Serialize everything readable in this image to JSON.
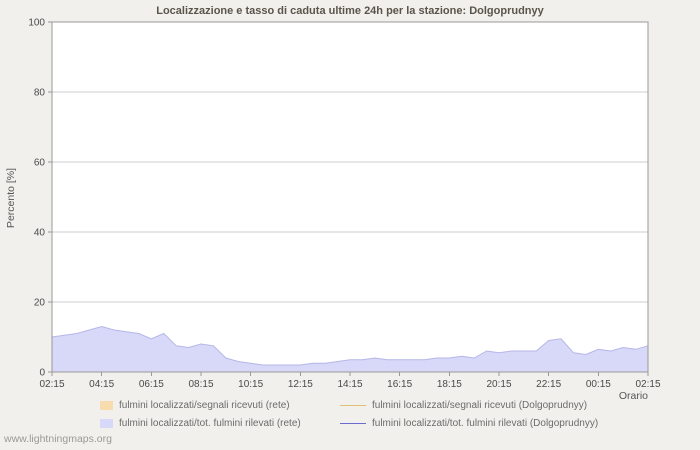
{
  "page": {
    "watermark": "www.lightningmaps.org"
  },
  "colors": {
    "page_bg": "#f1f0ec",
    "plot_bg": "#ffffff",
    "plot_border": "#999999",
    "gridline": "#cccccc",
    "area_rete_fill": "#d8d8f8",
    "area_rete_edge": "#b6b6e8",
    "area_segnali_fill": "#f9dcae",
    "line_segnali_station": "#e4c077",
    "line_rilevati_station": "#6b6bd1"
  },
  "chart_data": {
    "type": "area",
    "title": "Localizzazione e tasso di caduta ultime 24h per la stazione: Dolgoprudnyy",
    "xlabel": "Orario",
    "ylabel": "Percento  [%]",
    "ylim": [
      0,
      100
    ],
    "yticks": [
      0,
      20,
      40,
      60,
      80,
      100
    ],
    "xticks": [
      "02:15",
      "04:15",
      "06:15",
      "08:15",
      "10:15",
      "12:15",
      "14:15",
      "16:15",
      "18:15",
      "20:15",
      "22:15",
      "00:15",
      "02:15"
    ],
    "grid": "horizontal",
    "legend_position": "bottom",
    "x": [
      "02:15",
      "02:45",
      "03:15",
      "03:45",
      "04:15",
      "04:45",
      "05:15",
      "05:45",
      "06:15",
      "06:45",
      "07:15",
      "07:45",
      "08:15",
      "08:45",
      "09:15",
      "09:45",
      "10:15",
      "10:45",
      "11:15",
      "11:45",
      "12:15",
      "12:45",
      "13:15",
      "13:45",
      "14:15",
      "14:45",
      "15:15",
      "15:45",
      "16:15",
      "16:45",
      "17:15",
      "17:45",
      "18:15",
      "18:45",
      "19:15",
      "19:45",
      "20:15",
      "20:45",
      "21:15",
      "21:45",
      "22:15",
      "22:45",
      "23:15",
      "23:45",
      "00:15",
      "00:45",
      "01:15",
      "01:45",
      "02:15"
    ],
    "series": [
      {
        "name": "fulmini localizzati/segnali ricevuti (rete)",
        "type": "area",
        "color": "#f9dcae",
        "values": null
      },
      {
        "name": "fulmini localizzati/tot. fulmini rilevati (rete)",
        "type": "area",
        "color": "#d8d8f8",
        "edge_color": "#b6b6e8",
        "values": [
          10,
          10.5,
          11,
          12,
          13,
          12,
          11.5,
          11,
          9.5,
          11,
          7.5,
          7,
          8,
          7.5,
          4,
          3,
          2.5,
          2,
          2,
          2,
          2,
          2.5,
          2.5,
          3,
          3.5,
          3.5,
          4,
          3.5,
          3.5,
          3.5,
          3.5,
          4,
          4,
          4.5,
          4,
          6,
          5.5,
          6,
          6,
          6,
          9,
          9.5,
          5.5,
          5,
          6.5,
          6,
          7,
          6.5,
          7.5
        ]
      },
      {
        "name": "fulmini localizzati/segnali ricevuti (Dolgoprudnyy)",
        "type": "line",
        "color": "#e4c077",
        "values": null
      },
      {
        "name": "fulmini localizzati/tot. fulmini rilevati (Dolgoprudnyy)",
        "type": "line",
        "color": "#6b6bd1",
        "values": null
      }
    ]
  }
}
